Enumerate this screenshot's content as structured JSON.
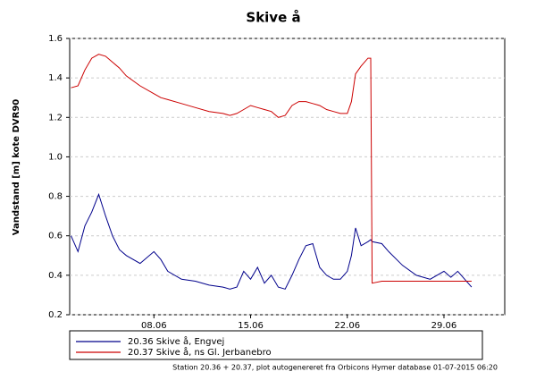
{
  "chart_data": {
    "type": "line",
    "title": "Skive å",
    "y_label": "Vandstand [m] kote DVR90",
    "footer": "Station 20.36 + 20.37, plot autogenereret fra Orbicons Hymer database 01-07-2015 06:20",
    "x": [
      2,
      2.5,
      3,
      3.5,
      4,
      4.5,
      5,
      5.5,
      6,
      7,
      8,
      8.5,
      9,
      10,
      11,
      12,
      13,
      13.5,
      14,
      14.5,
      15,
      15.5,
      16,
      16.5,
      17,
      17.5,
      18,
      18.5,
      19,
      19.5,
      20,
      20.5,
      21,
      21.5,
      22,
      22.3,
      22.6,
      23,
      23.5,
      23.7,
      23.8,
      24.5,
      25,
      26,
      27,
      28,
      29,
      29.5,
      30,
      30.5,
      31
    ],
    "series": [
      {
        "name": "20.36 Skive å, Engvej",
        "color": "#00008b",
        "values": [
          0.6,
          0.52,
          0.65,
          0.72,
          0.81,
          0.7,
          0.6,
          0.53,
          0.5,
          0.46,
          0.52,
          0.48,
          0.42,
          0.38,
          0.37,
          0.35,
          0.34,
          0.33,
          0.34,
          0.42,
          0.38,
          0.44,
          0.36,
          0.4,
          0.34,
          0.33,
          0.4,
          0.48,
          0.55,
          0.56,
          0.44,
          0.4,
          0.38,
          0.38,
          0.42,
          0.5,
          0.64,
          0.55,
          0.57,
          0.58,
          0.57,
          0.56,
          0.52,
          0.45,
          0.4,
          0.38,
          0.42,
          0.39,
          0.42,
          0.38,
          0.34
        ]
      },
      {
        "name": "20.37 Skive å, ns Gl. Jerbanebro",
        "color": "#cc0000",
        "values": [
          1.35,
          1.36,
          1.44,
          1.5,
          1.52,
          1.51,
          1.48,
          1.45,
          1.41,
          1.36,
          1.32,
          1.3,
          1.29,
          1.27,
          1.25,
          1.23,
          1.22,
          1.21,
          1.22,
          1.24,
          1.26,
          1.25,
          1.24,
          1.23,
          1.2,
          1.21,
          1.26,
          1.28,
          1.28,
          1.27,
          1.26,
          1.24,
          1.23,
          1.22,
          1.22,
          1.28,
          1.42,
          1.46,
          1.5,
          1.5,
          0.36,
          0.37,
          0.37,
          0.37,
          0.37,
          0.37,
          0.37,
          0.37,
          0.37,
          0.37,
          0.37
        ]
      }
    ],
    "xlim": [
      1.9,
      33.4
    ],
    "xticks": [
      {
        "value": 8,
        "label": "08.06"
      },
      {
        "value": 15,
        "label": "15.06"
      },
      {
        "value": 22,
        "label": "22.06"
      },
      {
        "value": 29,
        "label": "29.06"
      }
    ],
    "ylim": [
      0.2,
      1.6
    ],
    "yticks": [
      0.2,
      0.4,
      0.6,
      0.8,
      {
        "value": 1,
        "label": "1.0"
      },
      1.2,
      1.4,
      1.6
    ],
    "grid": true
  }
}
